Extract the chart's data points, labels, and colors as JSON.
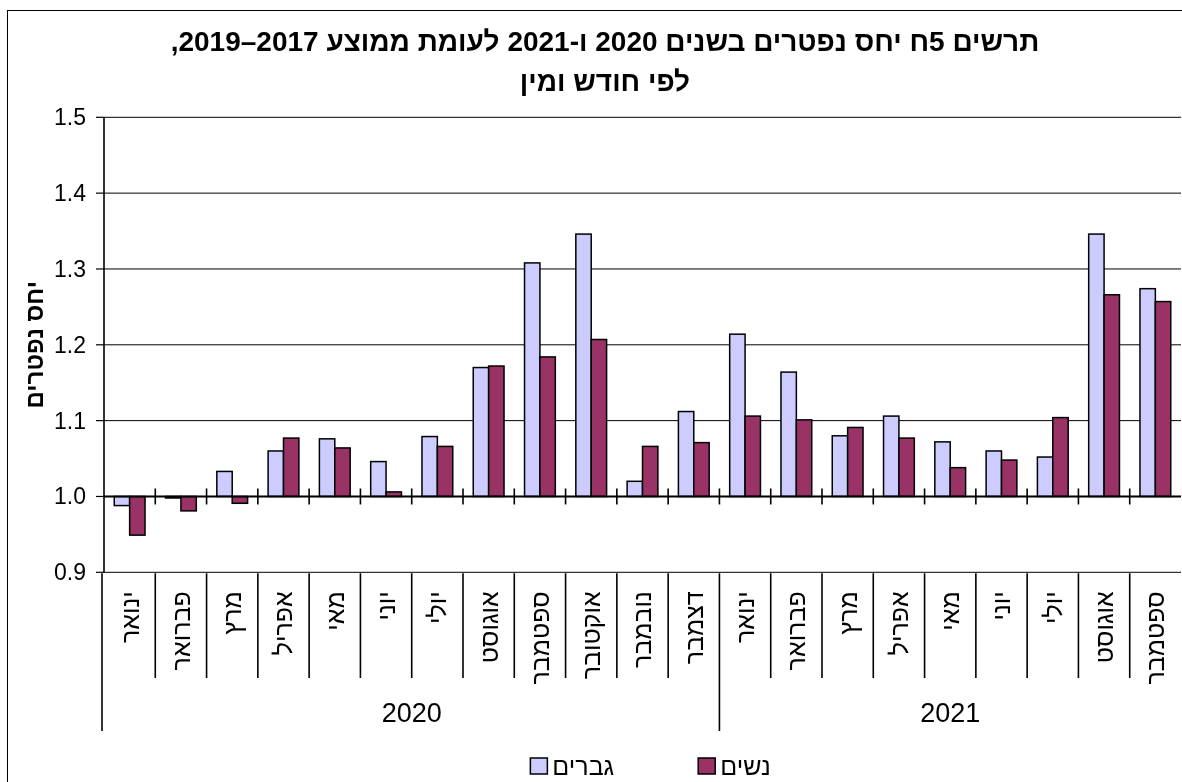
{
  "chart_data": {
    "type": "bar",
    "title": "תרשים 5ח יחס נפטרים בשנים 2020 ו-2021 לעומת ממוצע 2017–2019, לפי חודש ומין",
    "ylabel": "יחס נפטרים",
    "categories": [
      "ינואר",
      "פברואר",
      "מרץ",
      "אפריל",
      "מאי",
      "יוני",
      "יולי",
      "אוגוסט",
      "ספטמבר",
      "אוקטובר",
      "נובמבר",
      "דצמבר",
      "ינואר",
      "פברואר",
      "מרץ",
      "אפריל",
      "מאי",
      "יוני",
      "יולי",
      "אוגוסט",
      "ספטמבר"
    ],
    "annotations": [
      "2020",
      "2021"
    ],
    "series": [
      {
        "name": "גברים",
        "color": "#ccccff",
        "base": [
          1,
          1,
          1,
          1,
          1,
          1,
          1,
          1,
          1,
          1,
          1,
          1,
          1,
          1,
          1,
          1,
          1,
          1,
          1,
          1,
          1
        ],
        "values": [
          -0.012,
          -0.002,
          0.033,
          0.06,
          0.076,
          0.046,
          0.079,
          0.17,
          0.308,
          0.346,
          0.02,
          0.112,
          0.214,
          0.164,
          0.08,
          0.106,
          0.072,
          0.06,
          0.052,
          0.346,
          0.274
        ]
      },
      {
        "name": "נשים",
        "color": "#993366",
        "base": [
          1,
          1,
          1,
          1,
          1,
          1,
          1,
          1,
          1,
          1,
          1,
          1,
          1,
          1,
          1,
          1,
          1,
          1,
          1,
          1,
          1
        ],
        "values": [
          -0.051,
          -0.019,
          -0.009,
          0.077,
          0.064,
          0.006,
          0.066,
          0.172,
          0.184,
          0.207,
          0.066,
          0.071,
          0.106,
          0.101,
          0.091,
          0.077,
          0.038,
          0.048,
          0.104,
          0.266,
          0.257
        ]
      }
    ],
    "ylim": [
      0.9,
      1.5
    ],
    "yticks": [
      0.9,
      {
        "value": 1,
        "label": "1.0"
      },
      1.1,
      1.2,
      1.3,
      1.4,
      1.5
    ],
    "ref_lines": [
      {
        "axis": "y",
        "value": 1,
        "color": "#000000"
      }
    ],
    "grid": "y",
    "legend": "bottom"
  }
}
